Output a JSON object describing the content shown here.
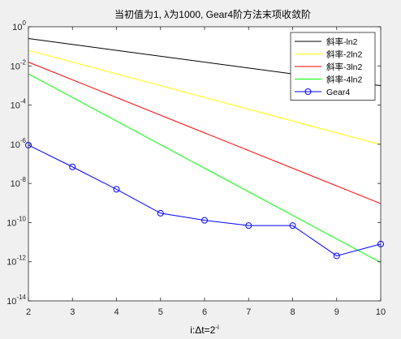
{
  "chart_data": {
    "type": "line",
    "title": "当初值为1, λ为1000, Gear4阶方法末项收敛阶",
    "xlabel": "i:Δt=2",
    "xlabel_sup": "-i",
    "ylabel": "",
    "xscale": "linear",
    "yscale": "log",
    "xlim": [
      2,
      10
    ],
    "ylim": [
      1e-14,
      1
    ],
    "grid": false,
    "legend_position": "top-right",
    "xticks": [
      2,
      3,
      4,
      5,
      6,
      7,
      8,
      9,
      10
    ],
    "x_tick_labels": [
      "2",
      "3",
      "4",
      "5",
      "6",
      "7",
      "8",
      "9",
      "10"
    ],
    "yticks": [
      {
        "value": 1.0,
        "base": "10",
        "exp": "0"
      },
      {
        "value": 0.01,
        "base": "10",
        "exp": "-2"
      },
      {
        "value": 0.0001,
        "base": "10",
        "exp": "-4"
      },
      {
        "value": 1e-06,
        "base": "10",
        "exp": "-6"
      },
      {
        "value": 1e-08,
        "base": "10",
        "exp": "-8"
      },
      {
        "value": 1e-10,
        "base": "10",
        "exp": "-10"
      },
      {
        "value": 1e-12,
        "base": "10",
        "exp": "-12"
      },
      {
        "value": 1e-14,
        "base": "10",
        "exp": "-14"
      }
    ],
    "series": [
      {
        "name": "斜率-ln2",
        "color": "#000000",
        "marker": "none",
        "x": [
          2,
          10
        ],
        "y": [
          0.25,
          0.00098
        ]
      },
      {
        "name": "斜率-2ln2",
        "color": "#ffff00",
        "marker": "none",
        "x": [
          2,
          10
        ],
        "y": [
          0.0625,
          9.5e-07
        ]
      },
      {
        "name": "斜率-3ln2",
        "color": "#ff0000",
        "marker": "none",
        "x": [
          2,
          10
        ],
        "y": [
          0.0156,
          9.3e-10
        ]
      },
      {
        "name": "斜率-4ln2",
        "color": "#00ff00",
        "marker": "none",
        "x": [
          2,
          10
        ],
        "y": [
          0.0039,
          9.1e-13
        ]
      },
      {
        "name": "Gear4",
        "color": "#0000ff",
        "marker": "circle",
        "x": [
          2,
          3,
          4,
          5,
          6,
          7,
          8,
          9,
          10
        ],
        "y": [
          9e-07,
          7e-08,
          5e-09,
          3e-10,
          1.3e-10,
          7e-11,
          7e-11,
          2e-12,
          8e-12
        ]
      }
    ]
  }
}
